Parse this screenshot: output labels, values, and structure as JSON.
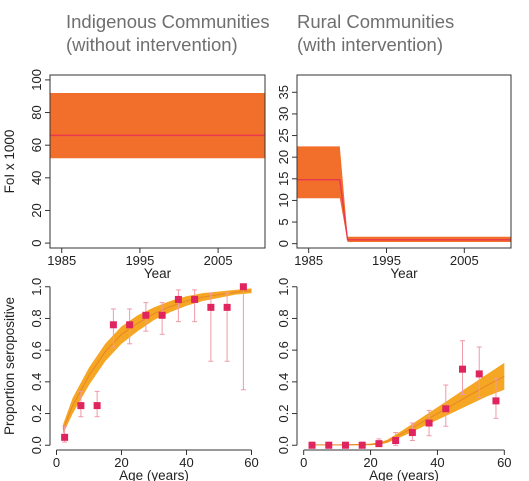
{
  "titles": {
    "left_line1": "Indigenous Communities",
    "left_line2": "(without intervention)",
    "right_line1": "Rural Communities",
    "right_line2": "(with intervention)"
  },
  "colors": {
    "band_orange": "#f26f2b",
    "line_red": "#e8384f",
    "seroband": "#f5a623",
    "marker": "#e0245e",
    "errorbar": "#f09aa8"
  },
  "chart_data": [
    {
      "id": "foi-indigenous",
      "type": "area",
      "xlabel": "Year",
      "ylabel": "FoI x 1000",
      "xlim": [
        1983.5,
        2011
      ],
      "ylim": [
        -3,
        103
      ],
      "xticks": [
        1985,
        1995,
        2005
      ],
      "yticks": [
        0,
        20,
        40,
        60,
        80,
        100
      ],
      "series": [
        {
          "x": [
            1983.5,
            2011
          ],
          "lower": [
            52,
            52
          ],
          "upper": [
            92,
            92
          ],
          "median": [
            66,
            66
          ]
        }
      ]
    },
    {
      "id": "foi-rural",
      "type": "area",
      "xlabel": "Year",
      "ylabel": "",
      "xlim": [
        1983.5,
        2011
      ],
      "ylim": [
        -1,
        39
      ],
      "xticks": [
        1985,
        1995,
        2005
      ],
      "yticks": [
        0,
        5,
        10,
        15,
        20,
        25,
        30,
        35
      ],
      "series": [
        {
          "x": [
            1983.5,
            1989,
            1990,
            2011
          ],
          "lower": [
            10.5,
            10.5,
            0.4,
            0.4
          ],
          "upper": [
            22.5,
            22.5,
            1.6,
            1.6
          ],
          "median": [
            14.8,
            14.8,
            0.9,
            0.9
          ]
        }
      ]
    },
    {
      "id": "sero-indigenous",
      "type": "scatter",
      "xlabel": "Age (years)",
      "ylabel": "Proportion seropositive",
      "xlim": [
        -2,
        62
      ],
      "ylim": [
        -0.03,
        1.03
      ],
      "xticks": [
        0,
        20,
        40,
        60
      ],
      "yticks": [
        0.0,
        0.2,
        0.4,
        0.6,
        0.8,
        1.0
      ],
      "band": {
        "x": [
          2,
          5,
          10,
          15,
          20,
          25,
          30,
          35,
          40,
          45,
          50,
          55,
          60
        ],
        "lower": [
          0.07,
          0.2,
          0.38,
          0.53,
          0.64,
          0.72,
          0.79,
          0.84,
          0.88,
          0.91,
          0.93,
          0.95,
          0.96
        ],
        "upper": [
          0.13,
          0.3,
          0.49,
          0.64,
          0.75,
          0.82,
          0.87,
          0.91,
          0.94,
          0.96,
          0.97,
          0.98,
          0.99
        ],
        "median": [
          0.1,
          0.25,
          0.44,
          0.59,
          0.7,
          0.77,
          0.83,
          0.875,
          0.91,
          0.935,
          0.95,
          0.965,
          0.975
        ]
      },
      "points": {
        "x": [
          2.5,
          7.5,
          12.5,
          17.5,
          22.5,
          27.5,
          32.5,
          37.5,
          42.5,
          47.5,
          52.5,
          57.5
        ],
        "y": [
          0.05,
          0.25,
          0.25,
          0.76,
          0.76,
          0.82,
          0.82,
          0.92,
          0.92,
          0.87,
          0.87,
          1.0
        ],
        "lo": [
          0.02,
          0.18,
          0.18,
          0.62,
          0.64,
          0.72,
          0.7,
          0.78,
          0.78,
          0.53,
          0.53,
          0.35
        ],
        "hi": [
          0.12,
          0.34,
          0.34,
          0.86,
          0.86,
          0.9,
          0.9,
          0.98,
          0.98,
          0.96,
          0.96,
          1.0
        ]
      }
    },
    {
      "id": "sero-rural",
      "type": "scatter",
      "xlabel": "Age (years)",
      "ylabel": "",
      "xlim": [
        -2,
        62
      ],
      "ylim": [
        -0.03,
        1.03
      ],
      "xticks": [
        0,
        20,
        40,
        60
      ],
      "yticks": [
        0.0,
        0.2,
        0.4,
        0.6,
        0.8,
        1.0
      ],
      "band": {
        "x": [
          2,
          10,
          20,
          23,
          25,
          30,
          35,
          40,
          45,
          50,
          55,
          60
        ],
        "lower": [
          0.0,
          0.0,
          0.0,
          0.005,
          0.015,
          0.06,
          0.11,
          0.16,
          0.21,
          0.26,
          0.31,
          0.35
        ],
        "upper": [
          0.005,
          0.005,
          0.01,
          0.02,
          0.035,
          0.1,
          0.17,
          0.24,
          0.31,
          0.38,
          0.45,
          0.52
        ],
        "median": [
          0.002,
          0.002,
          0.005,
          0.012,
          0.025,
          0.08,
          0.14,
          0.2,
          0.26,
          0.32,
          0.38,
          0.435
        ]
      },
      "points": {
        "x": [
          2.5,
          7.5,
          12.5,
          17.5,
          22.5,
          27.5,
          32.5,
          37.5,
          42.5,
          47.5,
          52.5,
          57.5
        ],
        "y": [
          0.0,
          0.0,
          0.0,
          0.0,
          0.01,
          0.03,
          0.08,
          0.14,
          0.23,
          0.48,
          0.45,
          0.28
        ],
        "lo": [
          0.0,
          0.0,
          0.0,
          0.0,
          0.0,
          0.0,
          0.03,
          0.06,
          0.12,
          0.32,
          0.3,
          0.17
        ],
        "hi": [
          0.02,
          0.02,
          0.02,
          0.02,
          0.04,
          0.08,
          0.14,
          0.22,
          0.38,
          0.66,
          0.62,
          0.42
        ]
      }
    }
  ]
}
